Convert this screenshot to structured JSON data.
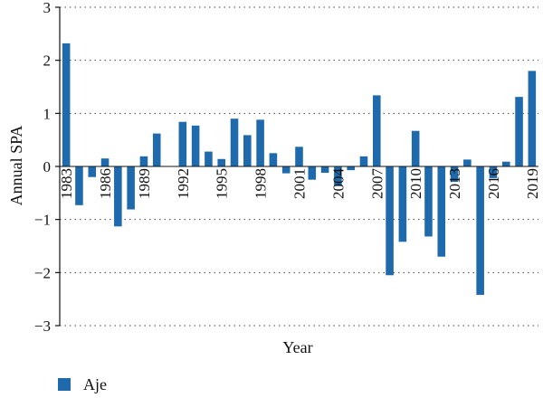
{
  "chart_data": {
    "type": "bar",
    "xlabel": "Year",
    "ylabel": "Annual SPA",
    "ylim": [
      -3,
      3
    ],
    "yticks": [
      -3,
      -2,
      -1,
      0,
      1,
      2,
      3
    ],
    "ytick_labels": [
      "−3",
      "−2",
      "−1",
      "0",
      "1",
      "2",
      "3"
    ],
    "xtick_labels": [
      "1983",
      "1986",
      "1989",
      "1992",
      "1995",
      "1998",
      "2001",
      "2004",
      "2007",
      "2010",
      "2013",
      "2016",
      "2019"
    ],
    "grid": "horizontal dotted",
    "legend_position": "bottom-left",
    "color": "#1f6aad",
    "series": [
      {
        "name": "Aje",
        "x": [
          1983,
          1984,
          1985,
          1986,
          1987,
          1988,
          1989,
          1990,
          1991,
          1992,
          1993,
          1994,
          1995,
          1996,
          1997,
          1998,
          1999,
          2000,
          2001,
          2002,
          2003,
          2004,
          2005,
          2006,
          2007,
          2008,
          2009,
          2010,
          2011,
          2012,
          2013,
          2014,
          2015,
          2016,
          2017,
          2018,
          2019
        ],
        "values": [
          2.32,
          -0.73,
          -0.2,
          0.15,
          -1.13,
          -0.81,
          0.19,
          0.62,
          0.0,
          0.84,
          0.77,
          0.28,
          0.14,
          0.9,
          0.59,
          0.88,
          0.25,
          -0.13,
          0.37,
          -0.25,
          -0.12,
          -0.37,
          -0.07,
          0.19,
          1.34,
          -2.05,
          -1.42,
          0.67,
          -1.32,
          -1.7,
          -0.29,
          0.13,
          -2.42,
          -0.22,
          0.09,
          1.31,
          1.8
        ]
      }
    ]
  }
}
